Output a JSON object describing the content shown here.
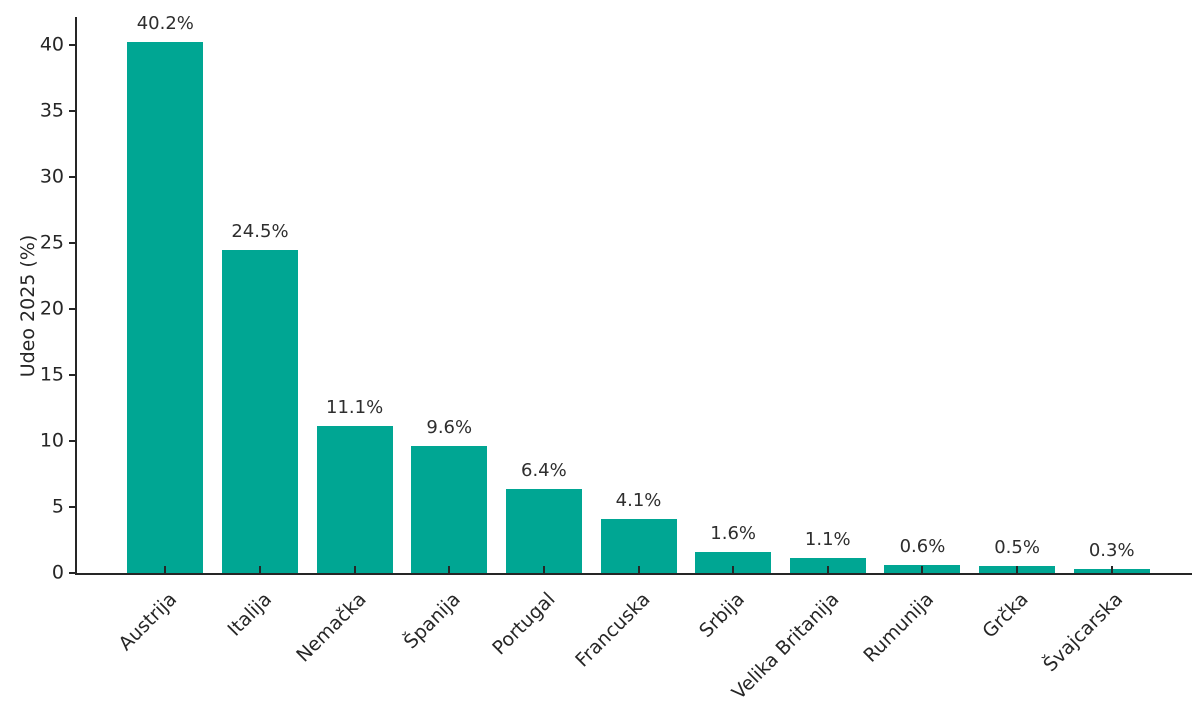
{
  "chart_data": {
    "type": "bar",
    "title": "",
    "categories": [
      "Austrija",
      "Italija",
      "Nemačka",
      "Španija",
      "Portugal",
      "Francuska",
      "Srbija",
      "Velika Britanija",
      "Rumunija",
      "Grčka",
      "Švajcarska"
    ],
    "values": [
      40.2,
      24.5,
      11.1,
      9.6,
      6.4,
      4.1,
      1.6,
      1.1,
      0.6,
      0.5,
      0.3
    ],
    "bar_labels": [
      "40.2%",
      "24.5%",
      "11.1%",
      "9.6%",
      "6.4%",
      "4.1%",
      "1.6%",
      "1.1%",
      "0.6%",
      "0.5%",
      "0.3%"
    ],
    "xlabel": "",
    "ylabel": "Udeo 2025 (%)",
    "yticks": [
      0,
      5,
      10,
      15,
      20,
      25,
      30,
      35,
      40
    ],
    "ylim": [
      0,
      42.12
    ],
    "grid": false,
    "legend_position": "none",
    "xtick_rotation_deg": 45,
    "colors": {
      "bar": "#00a693",
      "axis": "#262626",
      "text": "#262626",
      "background": "#ffffff"
    }
  }
}
